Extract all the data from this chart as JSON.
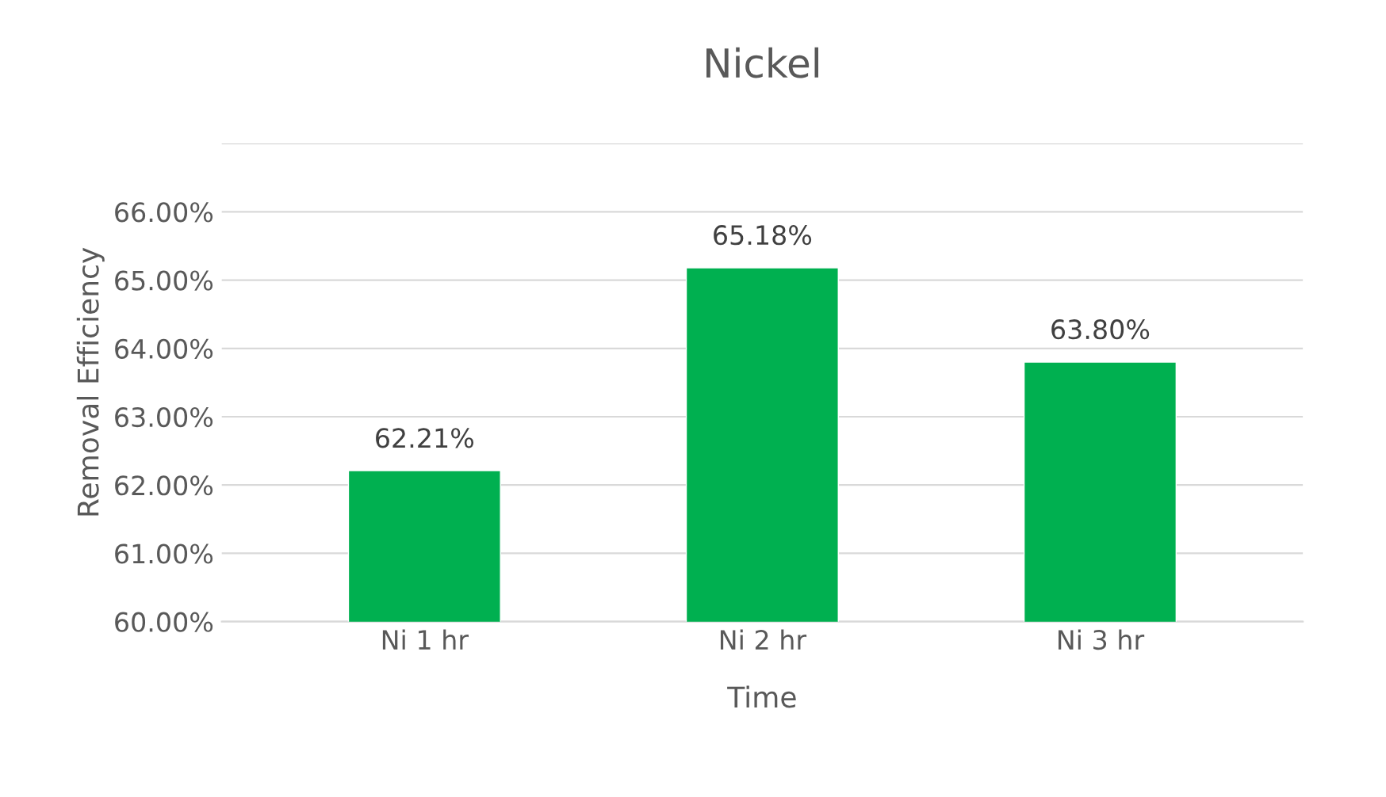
{
  "chart_data": {
    "type": "bar",
    "title": "Nickel",
    "xlabel": "Time",
    "ylabel": "Removal Efficiency",
    "categories": [
      "Ni 1 hr",
      "Ni 2 hr",
      "Ni 3 hr"
    ],
    "values": [
      62.21,
      65.18,
      63.8
    ],
    "value_labels": [
      "62.21%",
      "65.18%",
      "63.80%"
    ],
    "color": "#00b050",
    "ylim": [
      60,
      67
    ],
    "yticks": [
      {
        "value": 60,
        "label": "60.00%"
      },
      {
        "value": 61,
        "label": "61.00%"
      },
      {
        "value": 62,
        "label": "62.00%"
      },
      {
        "value": 63,
        "label": "63.00%"
      },
      {
        "value": 64,
        "label": "64.00%"
      },
      {
        "value": 65,
        "label": "65.00%"
      },
      {
        "value": 66,
        "label": "66.00%"
      },
      {
        "value": 67,
        "label": null
      }
    ],
    "grid": "y",
    "legend": false
  }
}
